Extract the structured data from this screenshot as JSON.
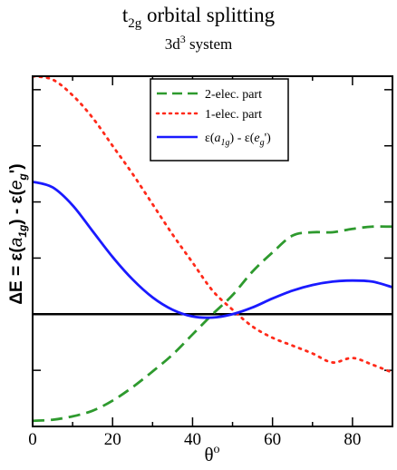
{
  "chart_data": {
    "type": "line",
    "title": "t2g orbital splitting",
    "title_parts": {
      "base": "t",
      "sub": "2g",
      "rest": " orbital splitting"
    },
    "subtitle": "3d3 system",
    "subtitle_parts": {
      "base": "3d",
      "sup": "3",
      "rest": " system"
    },
    "xlabel": "θo",
    "xlabel_parts": {
      "base": "θ",
      "sup": "o"
    },
    "ylabel": "ΔE = ε(a1g) - ε(eg')",
    "ylabel_parts": {
      "p1": "ΔE = ε(",
      "a": "a",
      "a_sub": "1g",
      "p2": ") - ε(",
      "e": "e",
      "e_sub": "g",
      "p3": "')"
    },
    "xlim": [
      0,
      90
    ],
    "ylim": [
      -1.0,
      2.12
    ],
    "x_ticks": [
      0,
      20,
      40,
      60,
      80
    ],
    "x_tick_labels": [
      "0",
      "20",
      "40",
      "60",
      "80"
    ],
    "y_tick_labels_shown": false,
    "zero_line": true,
    "legend_position": "top-center",
    "series": [
      {
        "name": "2-elec. part",
        "color": "#2e9a2e",
        "style": "dashed",
        "x": [
          0,
          5,
          10,
          15,
          20,
          25,
          30,
          35,
          40,
          45,
          50,
          55,
          60,
          65,
          70,
          75,
          80,
          85,
          90
        ],
        "y": [
          -0.95,
          -0.94,
          -0.91,
          -0.86,
          -0.77,
          -0.65,
          -0.51,
          -0.36,
          -0.18,
          0.0,
          0.17,
          0.38,
          0.55,
          0.7,
          0.73,
          0.73,
          0.76,
          0.78,
          0.78
        ]
      },
      {
        "name": "1-elec. part",
        "color": "#ff2a1a",
        "style": "dotted",
        "x": [
          0,
          5,
          10,
          15,
          20,
          25,
          30,
          35,
          40,
          45,
          50,
          55,
          60,
          65,
          70,
          75,
          80,
          85,
          90
        ],
        "y": [
          2.12,
          2.09,
          1.95,
          1.75,
          1.5,
          1.25,
          0.98,
          0.71,
          0.46,
          0.21,
          0.04,
          -0.11,
          -0.21,
          -0.28,
          -0.35,
          -0.43,
          -0.39,
          -0.45,
          -0.52
        ]
      },
      {
        "name": "ε(a1g) - ε(eg')",
        "name_parts": {
          "p1": "ε(",
          "a": "a",
          "a_sub": "1g",
          "p2": ") - ε(",
          "e": "e",
          "e_sub": "g",
          "p3": "')"
        },
        "color": "#1a1aff",
        "style": "solid",
        "x": [
          0,
          5,
          10,
          15,
          20,
          25,
          30,
          35,
          40,
          45,
          50,
          55,
          60,
          65,
          70,
          75,
          80,
          85,
          90
        ],
        "y": [
          1.18,
          1.13,
          0.97,
          0.74,
          0.51,
          0.31,
          0.15,
          0.04,
          -0.02,
          -0.03,
          0.0,
          0.06,
          0.14,
          0.21,
          0.26,
          0.29,
          0.3,
          0.29,
          0.24
        ]
      }
    ]
  }
}
